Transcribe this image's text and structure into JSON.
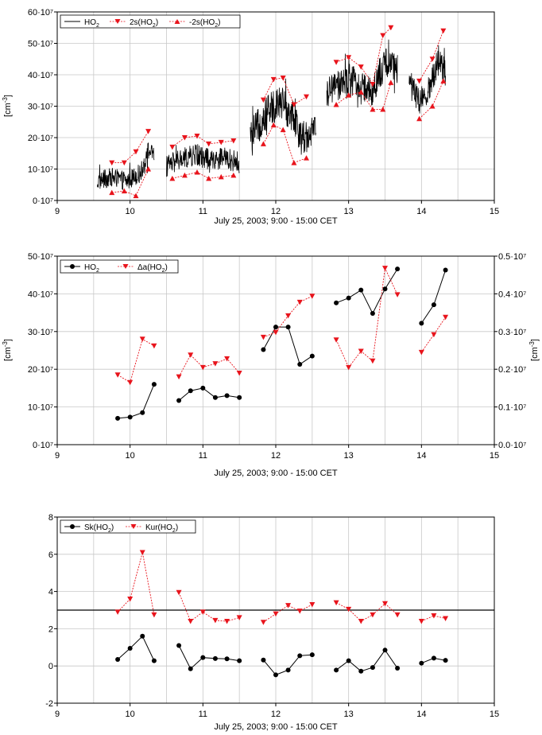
{
  "colors": {
    "black": "#000000",
    "red": "#e8141c",
    "grid": "#c8c8c8"
  },
  "chart_data": [
    {
      "id": "panel1",
      "type": "line",
      "xlabel": "July 25, 2003; 9:00 - 15:00 CET",
      "ylabel": "[cm-3]",
      "xlim": [
        9,
        15
      ],
      "ylim": [
        0,
        60
      ],
      "xticks": [
        "9",
        "10",
        "11",
        "12",
        "13",
        "14",
        "15"
      ],
      "yticks": [
        "0·10⁷",
        "10·10⁷",
        "20·10⁷",
        "30·10⁷",
        "40·10⁷",
        "50·10⁷",
        "60·10⁷"
      ],
      "grid": true,
      "legend": "top-left",
      "series": [
        {
          "name": "HO2",
          "style": "black-noisy-line",
          "segments": [
            {
              "x0": 9.55,
              "x1": 10.33,
              "base": [
                [
                  9.55,
                  6.0
                ],
                [
                  9.75,
                  7.5
                ],
                [
                  9.95,
                  6.0
                ],
                [
                  10.15,
                  9.0
                ],
                [
                  10.25,
                  16.0
                ],
                [
                  10.33,
                  14.0
                ]
              ],
              "noise": 3.0
            },
            {
              "x0": 10.5,
              "x1": 11.5,
              "base": [
                [
                  10.5,
                  11.0
                ],
                [
                  10.7,
                  13.0
                ],
                [
                  10.9,
                  14.5
                ],
                [
                  11.1,
                  13.0
                ],
                [
                  11.3,
                  13.5
                ],
                [
                  11.5,
                  12.0
                ]
              ],
              "noise": 3.5
            },
            {
              "x0": 11.65,
              "x1": 12.55,
              "base": [
                [
                  11.65,
                  20.0
                ],
                [
                  11.85,
                  27.0
                ],
                [
                  12.05,
                  32.0
                ],
                [
                  12.2,
                  28.0
                ],
                [
                  12.35,
                  20.0
                ],
                [
                  12.55,
                  22.0
                ]
              ],
              "noise": 5.5
            },
            {
              "x0": 12.7,
              "x1": 13.67,
              "base": [
                [
                  12.7,
                  34.0
                ],
                [
                  12.9,
                  37.0
                ],
                [
                  13.1,
                  38.0
                ],
                [
                  13.3,
                  34.0
                ],
                [
                  13.5,
                  44.0
                ],
                [
                  13.67,
                  42.0
                ]
              ],
              "noise": 5.0
            },
            {
              "x0": 13.83,
              "x1": 14.33,
              "base": [
                [
                  13.83,
                  38.0
                ],
                [
                  13.97,
                  31.0
                ],
                [
                  14.1,
                  35.0
                ],
                [
                  14.25,
                  46.0
                ],
                [
                  14.33,
                  40.0
                ]
              ],
              "noise": 4.5
            }
          ]
        },
        {
          "name": "2s(HO2)",
          "style": "red-dotted-downtriangle",
          "groups": [
            [
              [
                9.75,
                12.0
              ],
              [
                9.92,
                12.0
              ],
              [
                10.08,
                15.5
              ],
              [
                10.25,
                22.0
              ]
            ],
            [
              [
                10.58,
                17.0
              ],
              [
                10.75,
                20.0
              ],
              [
                10.92,
                20.5
              ],
              [
                11.08,
                18.0
              ],
              [
                11.25,
                18.5
              ],
              [
                11.42,
                19.0
              ]
            ],
            [
              [
                11.83,
                32.0
              ],
              [
                11.97,
                38.5
              ],
              [
                12.1,
                39.0
              ],
              [
                12.25,
                30.5
              ],
              [
                12.42,
                33.0
              ]
            ],
            [
              [
                12.83,
                44.0
              ],
              [
                13.0,
                45.5
              ],
              [
                13.17,
                42.5
              ],
              [
                13.33,
                37.0
              ],
              [
                13.47,
                52.5
              ],
              [
                13.58,
                55.0
              ]
            ],
            [
              [
                13.97,
                38.0
              ],
              [
                14.15,
                45.0
              ],
              [
                14.3,
                54.0
              ]
            ]
          ]
        },
        {
          "name": "-2s(HO2)",
          "style": "red-dotted-uptriangle",
          "groups": [
            [
              [
                9.75,
                2.5
              ],
              [
                9.92,
                3.0
              ],
              [
                10.08,
                1.5
              ],
              [
                10.25,
                10.0
              ]
            ],
            [
              [
                10.58,
                7.0
              ],
              [
                10.75,
                8.0
              ],
              [
                10.92,
                9.0
              ],
              [
                11.08,
                7.0
              ],
              [
                11.25,
                7.5
              ],
              [
                11.42,
                8.0
              ]
            ],
            [
              [
                11.83,
                18.0
              ],
              [
                11.97,
                24.0
              ],
              [
                12.1,
                22.5
              ],
              [
                12.25,
                12.0
              ],
              [
                12.42,
                13.5
              ]
            ],
            [
              [
                12.83,
                30.5
              ],
              [
                13.0,
                33.5
              ],
              [
                13.17,
                34.5
              ],
              [
                13.33,
                29.0
              ],
              [
                13.47,
                29.0
              ],
              [
                13.58,
                37.5
              ]
            ],
            [
              [
                13.97,
                26.0
              ],
              [
                14.15,
                30.0
              ],
              [
                14.3,
                38.0
              ]
            ]
          ]
        }
      ]
    },
    {
      "id": "panel2",
      "type": "line",
      "xlabel": "July 25, 2003; 9:00 - 15:00 CET",
      "ylabel": "[cm-3]",
      "y2label": "[cm-3]",
      "xlim": [
        9,
        15
      ],
      "ylim": [
        0,
        50
      ],
      "y2lim": [
        0,
        0.5
      ],
      "xticks": [
        "9",
        "10",
        "11",
        "12",
        "13",
        "14",
        "15"
      ],
      "yticks": [
        "0·10⁷",
        "10·10⁷",
        "20·10⁷",
        "30·10⁷",
        "40·10⁷",
        "50·10⁷"
      ],
      "y2ticks": [
        "0.0·10⁷",
        "0.1·10⁷",
        "0.2·10⁷",
        "0.3·10⁷",
        "0.4·10⁷",
        "0.5·10⁷"
      ],
      "grid": true,
      "legend": "top-left",
      "series": [
        {
          "name": "HO2",
          "axis": "left",
          "style": "black-solid-circle",
          "groups": [
            [
              [
                9.83,
                7.0
              ],
              [
                10.0,
                7.3
              ],
              [
                10.17,
                8.5
              ],
              [
                10.33,
                16.0
              ]
            ],
            [
              [
                10.67,
                11.7
              ],
              [
                10.83,
                14.3
              ],
              [
                11.0,
                15.0
              ],
              [
                11.17,
                12.5
              ],
              [
                11.33,
                13.0
              ],
              [
                11.5,
                12.5
              ]
            ],
            [
              [
                11.83,
                25.2
              ],
              [
                12.0,
                31.2
              ],
              [
                12.17,
                31.2
              ],
              [
                12.33,
                21.3
              ],
              [
                12.5,
                23.5
              ]
            ],
            [
              [
                12.83,
                37.6
              ],
              [
                13.0,
                38.9
              ],
              [
                13.17,
                41.0
              ],
              [
                13.33,
                34.8
              ],
              [
                13.5,
                41.3
              ],
              [
                13.67,
                46.6
              ]
            ],
            [
              [
                14.0,
                32.2
              ],
              [
                14.17,
                37.1
              ],
              [
                14.33,
                46.3
              ]
            ]
          ]
        },
        {
          "name": "Δa(HO2)",
          "axis": "right",
          "style": "red-dotted-downtriangle",
          "groups": [
            [
              [
                9.83,
                0.185
              ],
              [
                10.0,
                0.165
              ],
              [
                10.17,
                0.28
              ],
              [
                10.33,
                0.262
              ]
            ],
            [
              [
                10.67,
                0.18
              ],
              [
                10.83,
                0.238
              ],
              [
                11.0,
                0.205
              ],
              [
                11.17,
                0.215
              ],
              [
                11.33,
                0.228
              ],
              [
                11.5,
                0.19
              ]
            ],
            [
              [
                11.83,
                0.285
              ],
              [
                12.0,
                0.298
              ],
              [
                12.17,
                0.342
              ],
              [
                12.33,
                0.378
              ],
              [
                12.5,
                0.394
              ]
            ],
            [
              [
                12.83,
                0.278
              ],
              [
                13.0,
                0.205
              ],
              [
                13.17,
                0.248
              ],
              [
                13.33,
                0.222
              ],
              [
                13.5,
                0.468
              ],
              [
                13.67,
                0.398
              ]
            ],
            [
              [
                14.0,
                0.245
              ],
              [
                14.17,
                0.292
              ],
              [
                14.33,
                0.338
              ]
            ]
          ]
        }
      ]
    },
    {
      "id": "panel3",
      "type": "line",
      "xlabel": "July 25, 2003; 9:00 - 15:00 CET",
      "ylabel": "",
      "xlim": [
        9,
        15
      ],
      "ylim": [
        -2,
        8
      ],
      "xticks": [
        "9",
        "10",
        "11",
        "12",
        "13",
        "14",
        "15"
      ],
      "yticks": [
        "-2",
        "0",
        "2",
        "4",
        "6",
        "8"
      ],
      "ytick_values": [
        -2,
        0,
        2,
        4,
        6,
        8
      ],
      "hline": 3,
      "grid": true,
      "legend": "top-left",
      "series": [
        {
          "name": "Sk(HO2)",
          "style": "black-solid-circle",
          "groups": [
            [
              [
                9.83,
                0.35
              ],
              [
                10.0,
                0.95
              ],
              [
                10.17,
                1.6
              ],
              [
                10.33,
                0.28
              ]
            ],
            [
              [
                10.67,
                1.1
              ],
              [
                10.83,
                -0.15
              ],
              [
                11.0,
                0.45
              ],
              [
                11.17,
                0.4
              ],
              [
                11.33,
                0.38
              ],
              [
                11.5,
                0.28
              ]
            ],
            [
              [
                11.83,
                0.32
              ],
              [
                12.0,
                -0.48
              ],
              [
                12.17,
                -0.22
              ],
              [
                12.33,
                0.55
              ],
              [
                12.5,
                0.6
              ]
            ],
            [
              [
                12.83,
                -0.22
              ],
              [
                13.0,
                0.28
              ],
              [
                13.17,
                -0.28
              ],
              [
                13.33,
                -0.08
              ],
              [
                13.5,
                0.85
              ],
              [
                13.67,
                -0.12
              ]
            ],
            [
              [
                14.0,
                0.15
              ],
              [
                14.17,
                0.42
              ],
              [
                14.33,
                0.3
              ]
            ]
          ]
        },
        {
          "name": "Kur(HO2)",
          "style": "red-dotted-downtriangle",
          "groups": [
            [
              [
                9.83,
                2.9
              ],
              [
                10.0,
                3.6
              ],
              [
                10.17,
                6.1
              ],
              [
                10.33,
                2.75
              ]
            ],
            [
              [
                10.67,
                3.95
              ],
              [
                10.83,
                2.4
              ],
              [
                11.0,
                2.9
              ],
              [
                11.17,
                2.45
              ],
              [
                11.33,
                2.4
              ],
              [
                11.5,
                2.6
              ]
            ],
            [
              [
                11.83,
                2.35
              ],
              [
                12.0,
                2.8
              ],
              [
                12.17,
                3.25
              ],
              [
                12.33,
                2.95
              ],
              [
                12.5,
                3.3
              ]
            ],
            [
              [
                12.83,
                3.4
              ],
              [
                13.0,
                3.05
              ],
              [
                13.17,
                2.4
              ],
              [
                13.33,
                2.75
              ],
              [
                13.5,
                3.35
              ],
              [
                13.67,
                2.75
              ]
            ],
            [
              [
                14.0,
                2.4
              ],
              [
                14.17,
                2.7
              ],
              [
                14.33,
                2.55
              ]
            ]
          ]
        }
      ]
    }
  ]
}
